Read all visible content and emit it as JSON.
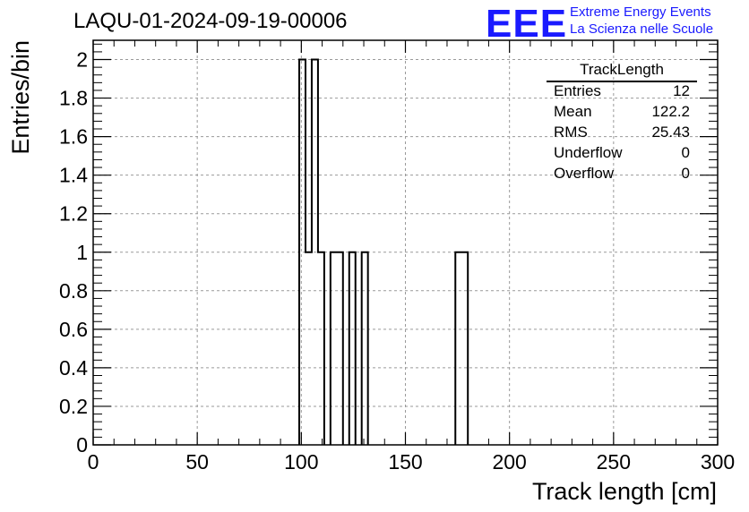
{
  "header": {
    "title": "LAQU-01-2024-09-19-00006"
  },
  "logo": {
    "mark": "EEE",
    "line1": "Extreme Energy Events",
    "line2": "La Scienza nelle Scuole",
    "color": "#1a1aff"
  },
  "stats": {
    "title": "TrackLength",
    "rows": [
      {
        "label": "Entries",
        "value": "12"
      },
      {
        "label": "Mean",
        "value": "122.2"
      },
      {
        "label": "RMS",
        "value": "25.43"
      },
      {
        "label": "Underflow",
        "value": "0"
      },
      {
        "label": "Overflow",
        "value": "0"
      }
    ]
  },
  "chart_data": {
    "type": "bar",
    "title": "LAQU-01-2024-09-19-00006",
    "xlabel": "Track length [cm]",
    "ylabel": "Entries/bin",
    "xlim": [
      0,
      300
    ],
    "ylim": [
      0,
      2.1
    ],
    "grid": true,
    "bin_width": 3,
    "x_ticks": [
      "0",
      "50",
      "100",
      "150",
      "200",
      "250",
      "300"
    ],
    "y_ticks": [
      "0",
      "0.2",
      "0.4",
      "0.6",
      "0.8",
      "1",
      "1.2",
      "1.4",
      "1.6",
      "1.8",
      "2"
    ],
    "bins": [
      {
        "low": 99,
        "high": 102,
        "count": 2
      },
      {
        "low": 102,
        "high": 105,
        "count": 1
      },
      {
        "low": 105,
        "high": 108,
        "count": 2
      },
      {
        "low": 108,
        "high": 111,
        "count": 1
      },
      {
        "low": 114,
        "high": 117,
        "count": 1
      },
      {
        "low": 117,
        "high": 120,
        "count": 1
      },
      {
        "low": 123,
        "high": 126,
        "count": 1
      },
      {
        "low": 129,
        "high": 132,
        "count": 1
      },
      {
        "low": 174,
        "high": 177,
        "count": 1
      },
      {
        "low": 177,
        "high": 180,
        "count": 1
      }
    ]
  }
}
